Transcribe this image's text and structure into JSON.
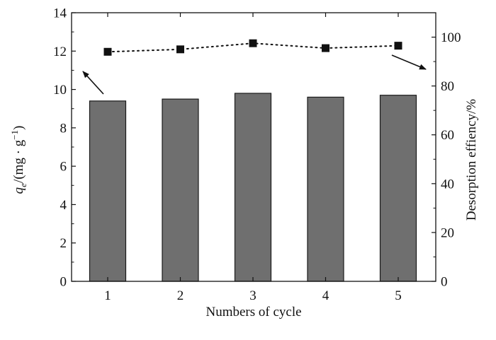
{
  "chart_data": {
    "type": "bar",
    "title": "",
    "xlabel": "Numbers of cycle",
    "ylabel_left": {
      "var": "q",
      "sub": "e",
      "unit_pre": "/(mg · g",
      "unit_sup": "−1",
      "unit_post": ")"
    },
    "ylabel_right": "Desorption effiency/%",
    "categories": [
      "1",
      "2",
      "3",
      "4",
      "5"
    ],
    "series": [
      {
        "type": "bar",
        "axis": "left",
        "values": [
          9.4,
          9.5,
          9.8,
          9.6,
          9.7
        ],
        "color": "#6f6f6f"
      },
      {
        "type": "line",
        "style": "dotted",
        "marker": "square",
        "axis": "right",
        "values": [
          94,
          95,
          97.5,
          95.5,
          96.5
        ],
        "color": "#111111"
      }
    ],
    "ylim_left": [
      0,
      14
    ],
    "yticks_left": [
      "0",
      "2",
      "4",
      "6",
      "8",
      "10",
      "12",
      "14"
    ],
    "ylim_right": [
      0,
      110
    ],
    "yticks_right": [
      "0",
      "20",
      "40",
      "60",
      "80",
      "100"
    ],
    "grid": false,
    "legend": "none",
    "annotations": [
      {
        "type": "arrow",
        "direction": "up-left",
        "points_to": "left axis"
      },
      {
        "type": "arrow",
        "direction": "down-right",
        "points_to": "right axis"
      }
    ]
  }
}
